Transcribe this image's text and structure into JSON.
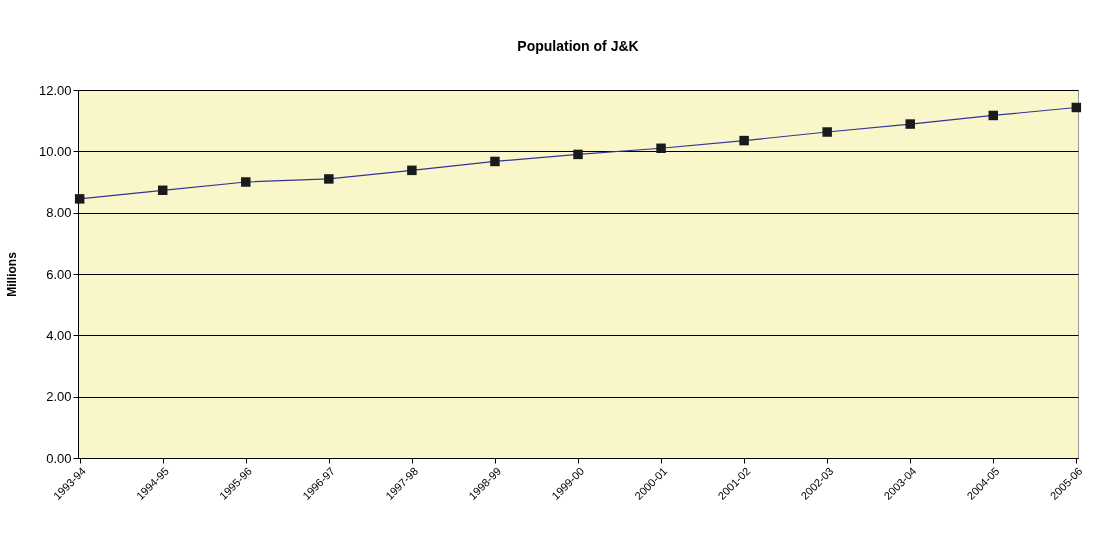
{
  "chart_data": {
    "type": "line",
    "title": "Population of J&K",
    "ylabel": "Millions",
    "categories": [
      "1993-94",
      "1994-95",
      "1995-96",
      "1996-97",
      "1997-98",
      "1998-99",
      "1999-00",
      "2000-01",
      "2001-02",
      "2002-03",
      "2003-04",
      "2004-05",
      "2005-06"
    ],
    "series": [
      {
        "color": "#333399",
        "values": [
          8.45,
          8.73,
          9.0,
          9.1,
          9.38,
          9.67,
          9.9,
          10.1,
          10.35,
          10.63,
          10.89,
          11.17,
          11.43
        ]
      }
    ],
    "ylim": [
      0,
      12
    ],
    "yticks": [
      {
        "value": 0,
        "label": "0.00"
      },
      {
        "value": 2,
        "label": "2.00"
      },
      {
        "value": 4,
        "label": "4.00"
      },
      {
        "value": 6,
        "label": "6.00"
      },
      {
        "value": 8,
        "label": "8.00"
      },
      {
        "value": 10,
        "label": "10.00"
      },
      {
        "value": 12,
        "label": "12.00"
      }
    ],
    "grid": "y",
    "marker": "square",
    "line_style": "solid"
  }
}
